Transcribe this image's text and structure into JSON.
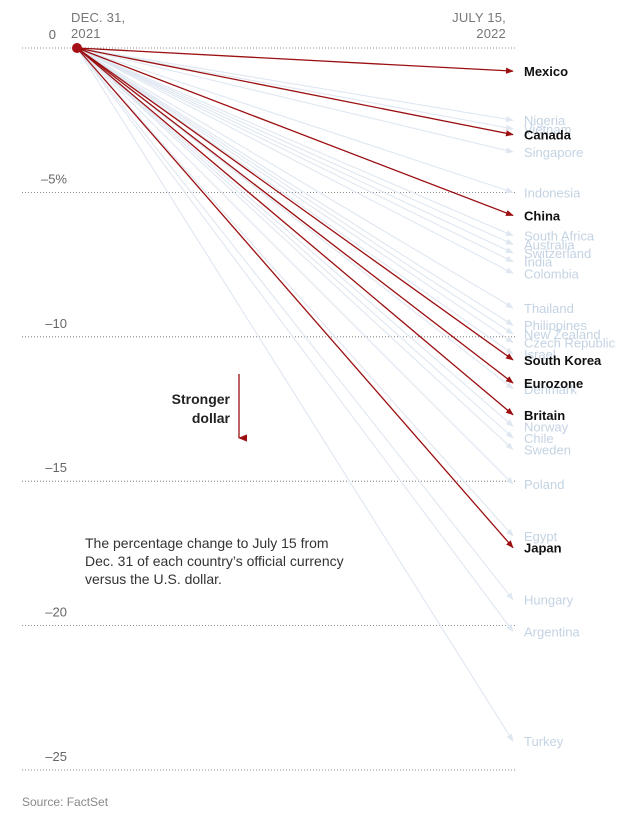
{
  "chart_data": {
    "type": "line",
    "x": [
      "DEC. 31, 2021",
      "JULY 15, 2022"
    ],
    "start_label": [
      "DEC. 31,",
      "2021"
    ],
    "end_label": [
      "JULY 15,",
      "2022"
    ],
    "ylim": [
      -25,
      0
    ],
    "yticks": [
      {
        "value": 0,
        "label": "0"
      },
      {
        "value": -5,
        "label": "–5%"
      },
      {
        "value": -10,
        "label": "–10"
      },
      {
        "value": -15,
        "label": "–15"
      },
      {
        "value": -20,
        "label": "–20"
      },
      {
        "value": -25,
        "label": "–25"
      }
    ],
    "series": [
      {
        "name": "Nigeria",
        "values": [
          0,
          -2.5
        ],
        "highlight": false
      },
      {
        "name": "Vietnam",
        "values": [
          0,
          -2.8
        ],
        "highlight": false
      },
      {
        "name": "Singapore",
        "values": [
          0,
          -3.6
        ],
        "highlight": false
      },
      {
        "name": "Indonesia",
        "values": [
          0,
          -5.0
        ],
        "highlight": false
      },
      {
        "name": "South Africa",
        "values": [
          0,
          -6.5
        ],
        "highlight": false
      },
      {
        "name": "Australia",
        "values": [
          0,
          -6.8
        ],
        "highlight": false
      },
      {
        "name": "Switzerland",
        "values": [
          0,
          -7.1
        ],
        "highlight": false
      },
      {
        "name": "India",
        "values": [
          0,
          -7.4
        ],
        "highlight": false
      },
      {
        "name": "Colombia",
        "values": [
          0,
          -7.8
        ],
        "highlight": false
      },
      {
        "name": "Thailand",
        "values": [
          0,
          -9.0
        ],
        "highlight": false
      },
      {
        "name": "Philippines",
        "values": [
          0,
          -9.6
        ],
        "highlight": false
      },
      {
        "name": "New Zealand",
        "values": [
          0,
          -9.9
        ],
        "highlight": false
      },
      {
        "name": "Czech Republic",
        "values": [
          0,
          -10.2
        ],
        "highlight": false
      },
      {
        "name": "Israel",
        "values": [
          0,
          -10.6
        ],
        "highlight": false
      },
      {
        "name": "Denmark",
        "values": [
          0,
          -11.8
        ],
        "highlight": false
      },
      {
        "name": "Norway",
        "values": [
          0,
          -13.1
        ],
        "highlight": false
      },
      {
        "name": "Chile",
        "values": [
          0,
          -13.5
        ],
        "highlight": false
      },
      {
        "name": "Sweden",
        "values": [
          0,
          -13.9
        ],
        "highlight": false
      },
      {
        "name": "Poland",
        "values": [
          0,
          -15.1
        ],
        "highlight": false
      },
      {
        "name": "Egypt",
        "values": [
          0,
          -16.9
        ],
        "highlight": false
      },
      {
        "name": "Hungary",
        "values": [
          0,
          -19.1
        ],
        "highlight": false
      },
      {
        "name": "Argentina",
        "values": [
          0,
          -20.2
        ],
        "highlight": false
      },
      {
        "name": "Turkey",
        "values": [
          0,
          -24.0
        ],
        "highlight": false
      },
      {
        "name": "Mexico",
        "values": [
          0,
          -0.8
        ],
        "highlight": true
      },
      {
        "name": "Canada",
        "values": [
          0,
          -3.0
        ],
        "highlight": true
      },
      {
        "name": "China",
        "values": [
          0,
          -5.8
        ],
        "highlight": true
      },
      {
        "name": "South Korea",
        "values": [
          0,
          -10.8
        ],
        "highlight": true
      },
      {
        "name": "Eurozone",
        "values": [
          0,
          -11.6
        ],
        "highlight": true
      },
      {
        "name": "Britain",
        "values": [
          0,
          -12.7
        ],
        "highlight": true
      },
      {
        "name": "Japan",
        "values": [
          0,
          -17.3
        ],
        "highlight": true
      }
    ],
    "colors": {
      "highlight": "#9b0f11",
      "muted_line": "#dfe7f1",
      "muted_label": "#c4d3e3",
      "grid": "#666666",
      "dot": "#a50f15"
    }
  },
  "annotation": {
    "direction_lines": [
      "Stronger",
      "dollar"
    ],
    "note": "The percentage change to July 15 from Dec. 31 of each country’s official currency versus the U.S. dollar."
  },
  "source": "Source: FactSet"
}
